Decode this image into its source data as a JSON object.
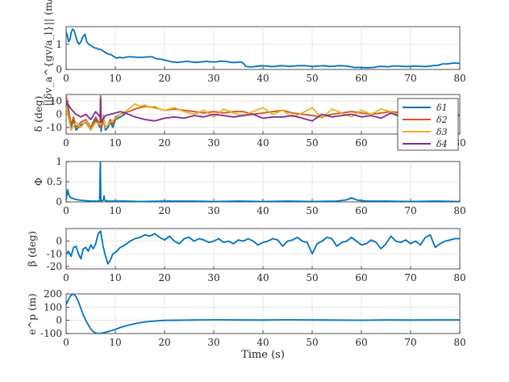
{
  "figure": {
    "xlabel": "Time (s)",
    "colors": {
      "blue": "#0072BD",
      "orange": "#D95319",
      "yellow": "#EDB120",
      "purple": "#7E2F8E",
      "grid": "#dfdfdf",
      "axes": "#262626"
    }
  },
  "chart_data": [
    {
      "type": "line",
      "id": "dv",
      "ylabel": "||δv_a^{gv/a_l}|| (m/s)",
      "xlim": [
        0,
        80
      ],
      "ylim": [
        0,
        1.7
      ],
      "xticks": [
        0,
        10,
        20,
        30,
        40,
        50,
        60,
        70,
        80
      ],
      "yticks": [
        0,
        1
      ],
      "series": [
        {
          "name": "dv",
          "color": "#0072BD",
          "x": [
            0,
            0.3,
            0.5,
            0.8,
            1,
            1.3,
            1.6,
            1.9,
            2.2,
            2.6,
            3,
            3.4,
            3.8,
            4.2,
            4.6,
            5,
            5.4,
            5.8,
            6.2,
            6.6,
            7,
            7.4,
            7.8,
            8.2,
            8.6,
            9,
            9.4,
            9.8,
            10.2,
            10.8,
            11.5,
            12.5,
            13.5,
            14.5,
            15.5,
            16.5,
            17.5,
            18.5,
            19.5,
            20.5,
            21.5,
            22.5,
            23.5,
            24.5,
            25.5,
            26.5,
            27.5,
            28.5,
            29.5,
            30.5,
            31.5,
            32.5,
            33.5,
            34.5,
            35.5,
            36,
            36.5,
            37.5,
            38.5,
            39.5,
            40.5,
            41.5,
            42.5,
            43.5,
            44.5,
            45.5,
            46.5,
            47.5,
            48.5,
            49.5,
            50.5,
            51.5,
            52.5,
            53.5,
            54.5,
            55.5,
            56.5,
            57.5,
            58.5,
            59.5,
            60.5,
            61.5,
            62.5,
            63.5,
            64.5,
            65.5,
            66.5,
            67.5,
            68.5,
            69.5,
            70.5,
            71.5,
            72.5,
            73.5,
            74.5,
            75.5,
            76.5,
            77.5,
            78.5,
            79.5,
            80
          ],
          "y": [
            1.5,
            1.3,
            1.1,
            1.2,
            1.45,
            1.6,
            1.55,
            1.35,
            1.15,
            1.0,
            1.1,
            1.3,
            1.4,
            1.1,
            1.0,
            0.95,
            0.9,
            0.85,
            0.85,
            0.8,
            0.8,
            0.75,
            0.7,
            0.65,
            0.6,
            0.6,
            0.55,
            0.5,
            0.45,
            0.48,
            0.46,
            0.5,
            0.5,
            0.48,
            0.48,
            0.5,
            0.5,
            0.42,
            0.4,
            0.35,
            0.3,
            0.28,
            0.3,
            0.32,
            0.3,
            0.28,
            0.3,
            0.32,
            0.3,
            0.3,
            0.33,
            0.32,
            0.28,
            0.28,
            0.3,
            0.25,
            0.12,
            0.1,
            0.12,
            0.15,
            0.14,
            0.12,
            0.12,
            0.15,
            0.14,
            0.12,
            0.14,
            0.15,
            0.15,
            0.13,
            0.12,
            0.14,
            0.15,
            0.12,
            0.13,
            0.15,
            0.14,
            0.12,
            0.08,
            0.08,
            0.07,
            0.07,
            0.08,
            0.12,
            0.12,
            0.11,
            0.13,
            0.14,
            0.12,
            0.12,
            0.13,
            0.13,
            0.12,
            0.12,
            0.15,
            0.16,
            0.22,
            0.22,
            0.25,
            0.25,
            0.24
          ]
        }
      ]
    },
    {
      "type": "line",
      "id": "delta",
      "ylabel": "δ (deg)",
      "xlim": [
        0,
        80
      ],
      "ylim": [
        -15,
        15
      ],
      "xticks": [
        0,
        10,
        20,
        30,
        40,
        50,
        60,
        70,
        80
      ],
      "yticks": [
        -10,
        0,
        10
      ],
      "legend": {
        "location": "top-right",
        "entries": [
          "δ1",
          "δ2",
          "δ3",
          "δ4"
        ]
      },
      "series": [
        {
          "name": "δ1",
          "color": "#0072BD",
          "x": [
            0,
            0.5,
            1,
            1.5,
            2,
            3,
            4,
            5,
            6,
            6.9,
            7,
            7.1,
            7.5,
            8,
            8.5,
            9,
            9.5,
            10,
            11,
            12
          ],
          "y": [
            12,
            2,
            -10,
            -4,
            -12,
            -8,
            -6,
            -12,
            -4,
            -10,
            12,
            -13,
            -3,
            -12,
            -10,
            -6,
            -10,
            -4,
            -2,
            0
          ]
        },
        {
          "name": "δ2",
          "color": "#D95319",
          "x": [
            0,
            0.5,
            1,
            1.5,
            2,
            3,
            4,
            5,
            6,
            6.9,
            7,
            7.1,
            7.5,
            8,
            8.5,
            9,
            9.5,
            10,
            11,
            12,
            14,
            16,
            18,
            20,
            22,
            24,
            26,
            28,
            30,
            32,
            34,
            36,
            38,
            40,
            42,
            44,
            46,
            48,
            50,
            52,
            54,
            56,
            58,
            60,
            62,
            64,
            66,
            68,
            70,
            72,
            74,
            76,
            78,
            80
          ],
          "y": [
            14,
            4,
            -8,
            -2,
            -10,
            -6,
            -4,
            -10,
            -2,
            -8,
            14,
            -11,
            -1,
            -10,
            -8,
            -4,
            -8,
            -2,
            0,
            1,
            4,
            6,
            5,
            3,
            4,
            3,
            2,
            1,
            2,
            1,
            2,
            2,
            0,
            1,
            2,
            3,
            1,
            0,
            -1,
            -2,
            0,
            1,
            2,
            1,
            0,
            1,
            2,
            1,
            0,
            1,
            -1,
            0,
            0,
            -1
          ]
        },
        {
          "name": "δ3",
          "color": "#EDB120",
          "x": [
            0,
            1,
            2,
            3,
            4,
            5,
            6,
            7,
            7.5,
            8,
            9,
            10,
            11,
            12,
            13,
            14,
            15,
            16,
            17,
            18,
            19,
            20,
            22,
            24,
            26,
            28,
            30,
            32,
            34,
            36,
            38,
            40,
            42,
            44,
            46,
            48,
            50,
            52,
            54,
            56,
            58,
            60,
            62,
            64,
            66,
            68,
            70,
            72,
            74,
            76,
            78,
            80
          ],
          "y": [
            6,
            -12,
            -6,
            -10,
            -5,
            -12,
            -6,
            -8,
            -2,
            -10,
            -6,
            -3,
            0,
            2,
            5,
            8,
            6,
            7,
            5,
            6,
            4,
            3,
            5,
            2,
            0,
            3,
            -2,
            4,
            1,
            -1,
            2,
            5,
            0,
            3,
            -2,
            1,
            5,
            -3,
            4,
            1,
            -2,
            3,
            0,
            4,
            2,
            -1,
            3,
            0,
            4,
            -2,
            2,
            0
          ]
        },
        {
          "name": "δ4",
          "color": "#7E2F8E",
          "x": [
            0,
            1,
            2,
            3,
            4,
            5,
            6,
            6.9,
            7,
            7.1,
            8,
            9,
            10,
            11,
            12,
            14,
            16,
            18,
            20,
            22,
            24,
            26,
            28,
            30,
            32,
            34,
            36,
            38,
            40,
            42,
            44,
            46,
            48,
            50,
            52,
            54,
            56,
            58,
            60,
            62,
            64,
            66,
            68,
            70,
            72,
            74,
            76,
            78,
            80
          ],
          "y": [
            10,
            4,
            0,
            -2,
            0,
            -4,
            2,
            -2,
            12,
            -6,
            -1,
            0,
            1,
            2,
            1,
            -2,
            -4,
            -5,
            -3,
            -2,
            -3,
            -1,
            -2,
            0,
            -1,
            -2,
            -1,
            0,
            -3,
            -2,
            -2,
            -1,
            -3,
            -5,
            0,
            -2,
            -1,
            0,
            -2,
            -1,
            -3,
            1,
            -2,
            0,
            -1,
            -2,
            -1,
            0,
            -1
          ]
        }
      ]
    },
    {
      "type": "line",
      "id": "phi",
      "ylabel": "Φ",
      "xlim": [
        0,
        80
      ],
      "ylim": [
        0,
        1
      ],
      "xticks": [
        0,
        10,
        20,
        30,
        40,
        50,
        60,
        70,
        80
      ],
      "yticks": [
        0,
        0.5,
        1
      ],
      "series": [
        {
          "name": "Φ",
          "color": "#0072BD",
          "x": [
            0,
            0.3,
            0.6,
            1,
            1.5,
            2,
            3,
            4,
            5,
            6,
            6.8,
            6.95,
            7.05,
            7.2,
            7.6,
            7.7,
            7.8,
            8,
            8.5,
            9,
            10,
            11,
            12,
            15,
            20,
            25,
            30,
            35,
            40,
            45,
            50,
            55,
            57,
            58,
            59,
            60,
            61,
            65,
            70,
            75,
            80
          ],
          "y": [
            0.05,
            0.3,
            0.15,
            0.1,
            0.08,
            0.06,
            0.04,
            0.03,
            0.02,
            0.02,
            0.02,
            1.0,
            0.05,
            0.02,
            0.05,
            0.15,
            0.05,
            0.03,
            0.02,
            0.02,
            0.02,
            0.02,
            0.02,
            0.01,
            0.02,
            0.02,
            0.01,
            0.02,
            0.01,
            0.02,
            0.01,
            0.02,
            0.05,
            0.1,
            0.05,
            0.03,
            0.02,
            0.02,
            0.01,
            0.02,
            0.01
          ]
        }
      ]
    },
    {
      "type": "line",
      "id": "beta",
      "ylabel": "β (deg)",
      "xlim": [
        0,
        80
      ],
      "ylim": [
        -22,
        10
      ],
      "xticks": [
        0,
        10,
        20,
        30,
        40,
        50,
        60,
        70,
        80
      ],
      "yticks": [
        -20,
        -10,
        0
      ],
      "series": [
        {
          "name": "β",
          "color": "#0072BD",
          "x": [
            0,
            0.5,
            1,
            1.5,
            2,
            2.5,
            3,
            3.5,
            4,
            4.5,
            5,
            5.5,
            6,
            6.5,
            7,
            7.5,
            8,
            8.5,
            9,
            9.5,
            10,
            11,
            12,
            13,
            14,
            15,
            16,
            17,
            18,
            19,
            20,
            21,
            22,
            23,
            24,
            25,
            26,
            27,
            28,
            29,
            30,
            31,
            32,
            33,
            34,
            35,
            36,
            37,
            38,
            39,
            40,
            41,
            42,
            43,
            44,
            45,
            46,
            47,
            48,
            49,
            50,
            51,
            52,
            53,
            54,
            55,
            56,
            57,
            58,
            59,
            60,
            61,
            62,
            63,
            64,
            65,
            66,
            67,
            68,
            69,
            70,
            71,
            72,
            73,
            74,
            75,
            76,
            77,
            78,
            79,
            80
          ],
          "y": [
            -10,
            -8,
            -12,
            -5,
            -4,
            -10,
            -14,
            -6,
            -5,
            -8,
            -3,
            -6,
            -2,
            6,
            8,
            -4,
            -12,
            -18,
            -15,
            -10,
            -9,
            -5,
            -3,
            0,
            2,
            3,
            5,
            4,
            6,
            3,
            1,
            4,
            0,
            -2,
            2,
            3,
            0,
            2,
            1,
            -1,
            0,
            2,
            -1,
            0,
            -2,
            1,
            0,
            2,
            0,
            -3,
            -1,
            0,
            2,
            1,
            -4,
            0,
            1,
            3,
            0,
            -1,
            -10,
            -2,
            0,
            3,
            2,
            -4,
            -1,
            0,
            3,
            0,
            -3,
            -2,
            1,
            -1,
            -6,
            -2,
            4,
            0,
            -1,
            1,
            -2,
            0,
            -3,
            3,
            5,
            -5,
            -2,
            0,
            1,
            2,
            2
          ]
        }
      ]
    },
    {
      "type": "line",
      "id": "ep",
      "ylabel": "e^p (m)",
      "xlim": [
        0,
        80
      ],
      "ylim": [
        -100,
        200
      ],
      "xticks": [
        0,
        10,
        20,
        30,
        40,
        50,
        60,
        70,
        80
      ],
      "yticks": [
        -100,
        0,
        100,
        200
      ],
      "series": [
        {
          "name": "e^p",
          "color": "#0072BD",
          "x": [
            0,
            0.5,
            1,
            1.5,
            2,
            2.5,
            3,
            3.5,
            4,
            4.5,
            5,
            5.5,
            6,
            6.5,
            7,
            7.5,
            8,
            9,
            10,
            11,
            12,
            13,
            14,
            15,
            16,
            18,
            20,
            25,
            30,
            35,
            40,
            45,
            50,
            55,
            60,
            65,
            70,
            75,
            80
          ],
          "y": [
            120,
            160,
            190,
            200,
            180,
            140,
            90,
            40,
            0,
            -35,
            -65,
            -85,
            -95,
            -100,
            -98,
            -95,
            -90,
            -80,
            -68,
            -55,
            -43,
            -33,
            -25,
            -18,
            -12,
            -5,
            0,
            2,
            4,
            3,
            2,
            4,
            3,
            2,
            1,
            3,
            2,
            3,
            3
          ]
        }
      ]
    }
  ]
}
